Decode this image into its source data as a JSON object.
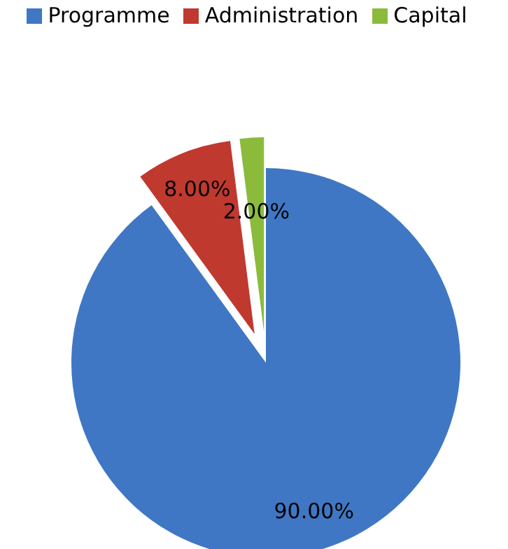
{
  "chart_data": {
    "type": "pie",
    "categories": [
      "Programme",
      "Administration",
      "Capital"
    ],
    "values": [
      90,
      8,
      2
    ],
    "colors": [
      "#3f77c4",
      "#c0392e",
      "#8cbb3c"
    ],
    "value_labels": [
      "90.00%",
      "8.00%",
      "2.00%"
    ],
    "legend": "top"
  }
}
